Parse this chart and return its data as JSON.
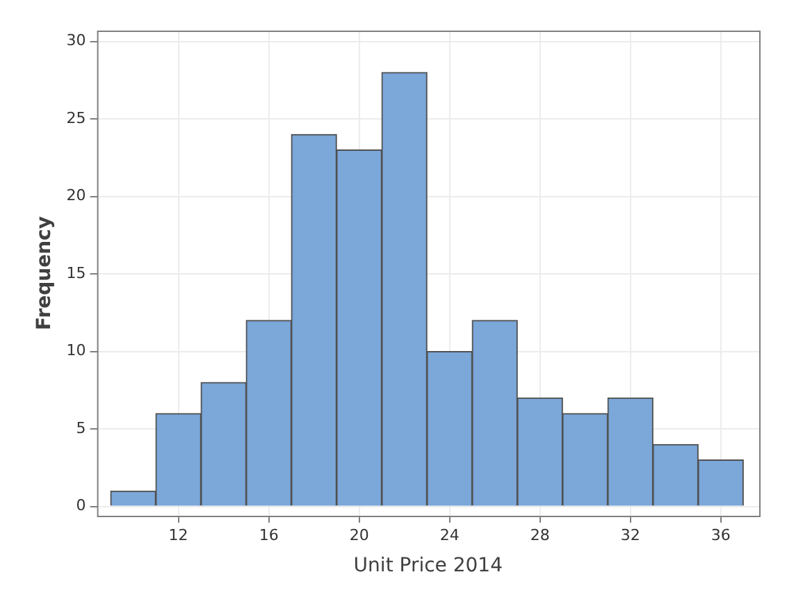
{
  "chart_data": {
    "type": "histogram",
    "xlabel": "Unit Price 2014",
    "ylabel": "Frequency",
    "bins": [
      9,
      11,
      13,
      15,
      17,
      19,
      21,
      23,
      25,
      27,
      29,
      31,
      33,
      35,
      37
    ],
    "values": [
      1,
      6,
      8,
      12,
      24,
      23,
      28,
      10,
      12,
      7,
      6,
      7,
      4,
      3
    ],
    "color": "#7ba7d9",
    "xlim": [
      8.4,
      37.7
    ],
    "xticks": [
      12,
      16,
      20,
      24,
      28,
      32,
      36
    ],
    "ylim": [
      -0.6,
      30.7
    ],
    "yticks": [
      0,
      5,
      10,
      15,
      20,
      25,
      30
    ],
    "grid": true,
    "legend": false
  }
}
